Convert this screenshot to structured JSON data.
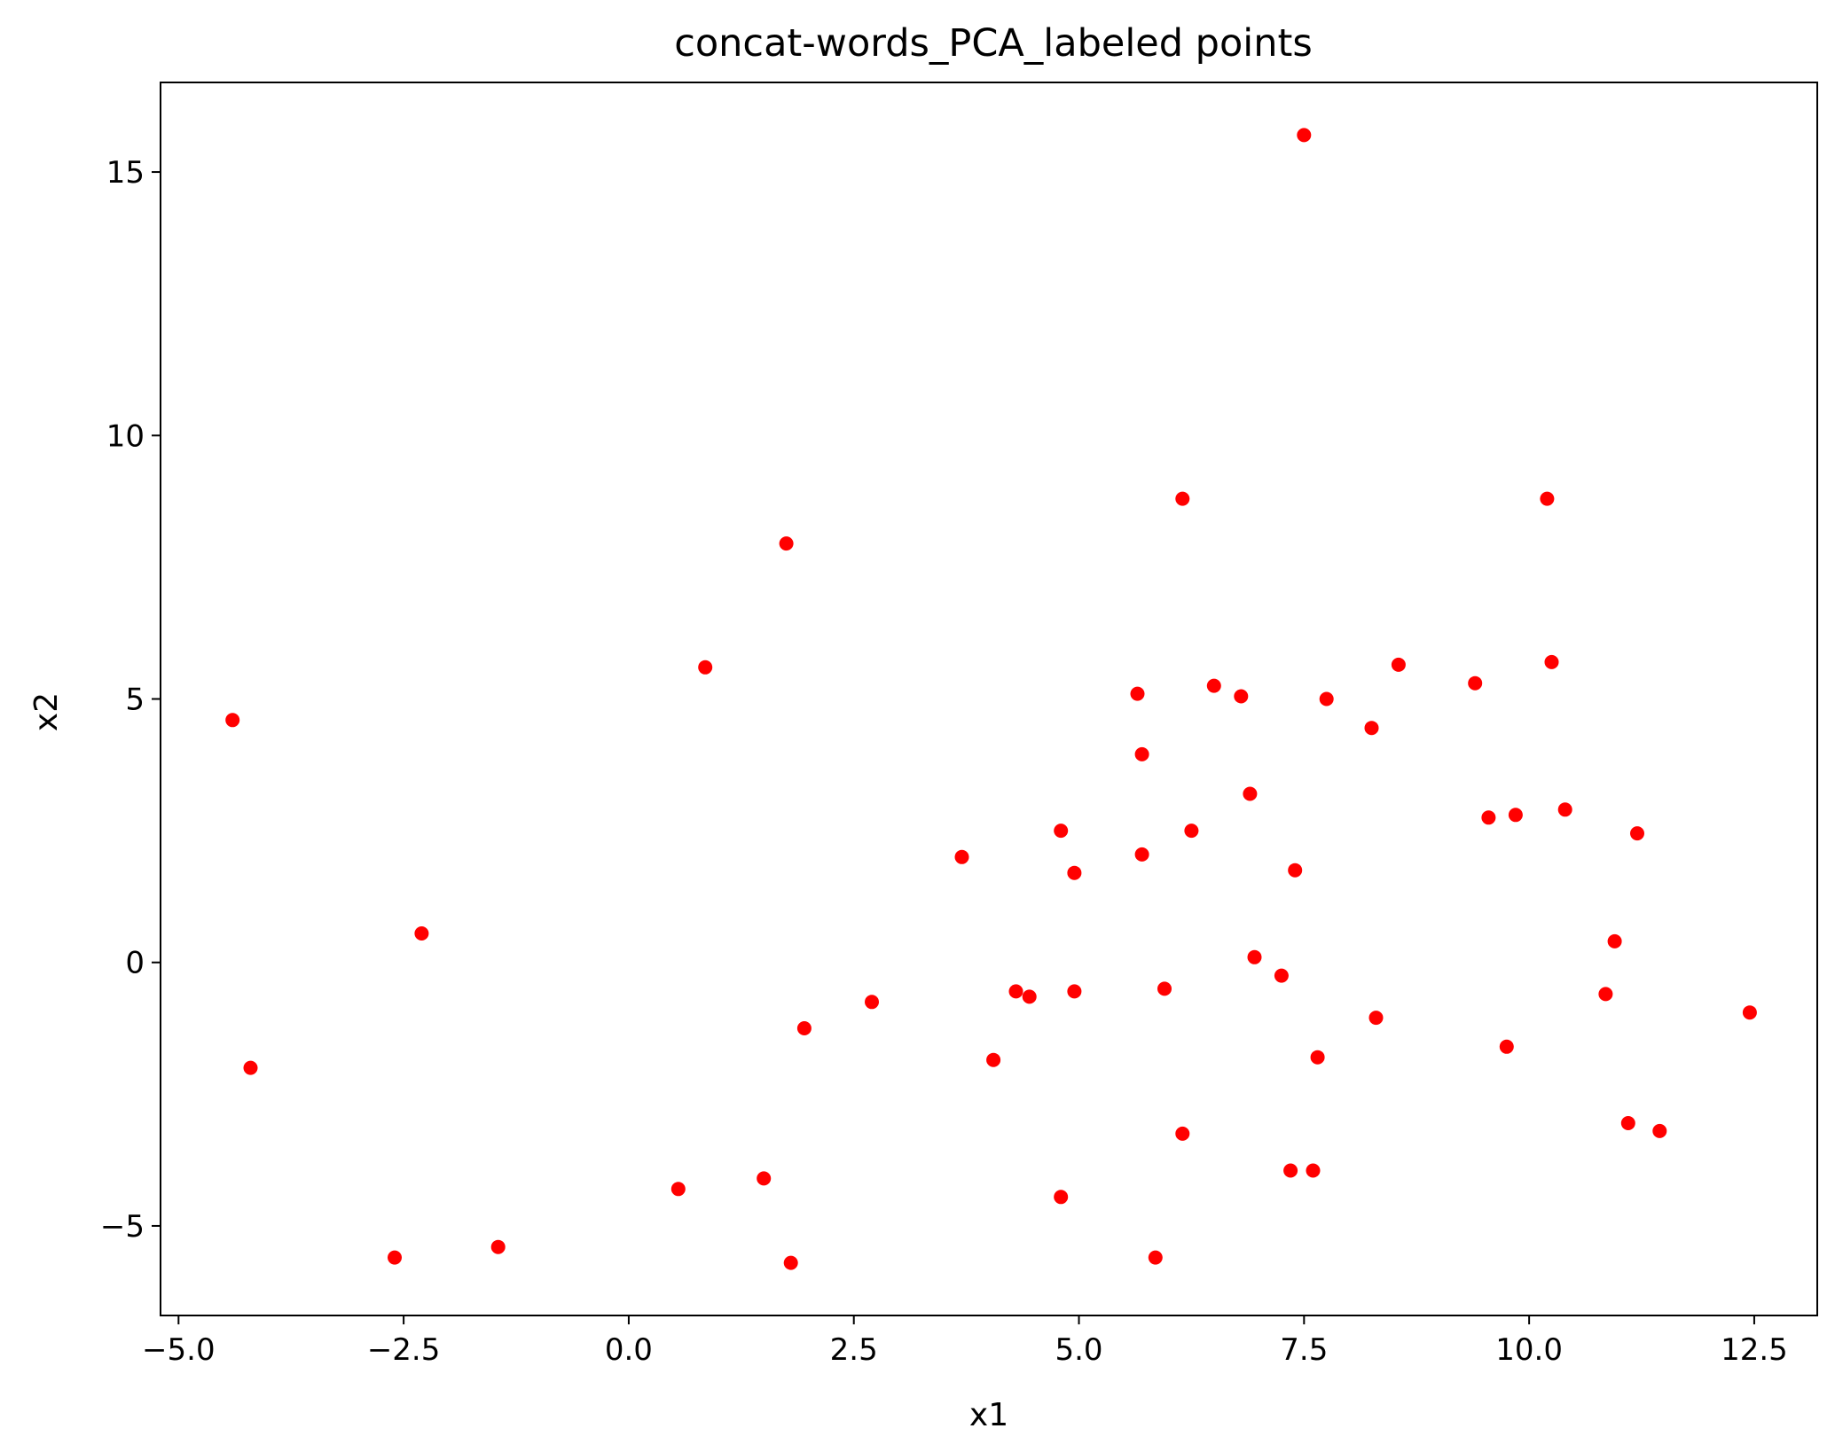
{
  "chart_data": {
    "type": "scatter",
    "title": "concat-words_PCA_labeled points",
    "xlabel": "x1",
    "ylabel": "x2",
    "xlim": [
      -5.2,
      13.2
    ],
    "ylim": [
      -6.7,
      16.7
    ],
    "xticks": [
      -5.0,
      -2.5,
      0.0,
      2.5,
      5.0,
      7.5,
      10.0,
      12.5
    ],
    "xtick_labels": [
      "−5.0",
      "−2.5",
      "0.0",
      "2.5",
      "5.0",
      "7.5",
      "10.0",
      "12.5"
    ],
    "yticks": [
      -5,
      0,
      5,
      10,
      15
    ],
    "ytick_labels": [
      "−5",
      "0",
      "5",
      "10",
      "15"
    ],
    "grid": false,
    "marker_color": "#ff0000",
    "series": [
      {
        "points": [
          {
            "x": 7.5,
            "y": 15.7
          },
          {
            "x": 6.15,
            "y": 8.8
          },
          {
            "x": 10.2,
            "y": 8.8
          },
          {
            "x": 1.75,
            "y": 7.95
          },
          {
            "x": 0.85,
            "y": 5.6
          },
          {
            "x": 8.55,
            "y": 5.65
          },
          {
            "x": 10.25,
            "y": 5.7
          },
          {
            "x": 9.4,
            "y": 5.3
          },
          {
            "x": 6.5,
            "y": 5.25
          },
          {
            "x": 5.65,
            "y": 5.1
          },
          {
            "x": 6.8,
            "y": 5.05
          },
          {
            "x": 7.75,
            "y": 5.0
          },
          {
            "x": -4.4,
            "y": 4.6
          },
          {
            "x": 8.25,
            "y": 4.45
          },
          {
            "x": 5.7,
            "y": 3.95
          },
          {
            "x": 6.9,
            "y": 3.2
          },
          {
            "x": 10.4,
            "y": 2.9
          },
          {
            "x": 9.85,
            "y": 2.8
          },
          {
            "x": 9.55,
            "y": 2.75
          },
          {
            "x": 4.8,
            "y": 2.5
          },
          {
            "x": 6.25,
            "y": 2.5
          },
          {
            "x": 11.2,
            "y": 2.45
          },
          {
            "x": 3.7,
            "y": 2.0
          },
          {
            "x": 5.7,
            "y": 2.05
          },
          {
            "x": 7.4,
            "y": 1.75
          },
          {
            "x": 4.95,
            "y": 1.7
          },
          {
            "x": -2.3,
            "y": 0.55
          },
          {
            "x": 10.95,
            "y": 0.4
          },
          {
            "x": 6.95,
            "y": 0.1
          },
          {
            "x": 7.25,
            "y": -0.25
          },
          {
            "x": 4.3,
            "y": -0.55
          },
          {
            "x": 4.45,
            "y": -0.65
          },
          {
            "x": 4.95,
            "y": -0.55
          },
          {
            "x": 5.95,
            "y": -0.5
          },
          {
            "x": 10.85,
            "y": -0.6
          },
          {
            "x": 2.7,
            "y": -0.75
          },
          {
            "x": 12.45,
            "y": -0.95
          },
          {
            "x": 8.3,
            "y": -1.05
          },
          {
            "x": 1.95,
            "y": -1.25
          },
          {
            "x": 9.75,
            "y": -1.6
          },
          {
            "x": 7.65,
            "y": -1.8
          },
          {
            "x": 4.05,
            "y": -1.85
          },
          {
            "x": -4.2,
            "y": -2.0
          },
          {
            "x": 11.1,
            "y": -3.05
          },
          {
            "x": 11.45,
            "y": -3.2
          },
          {
            "x": 6.15,
            "y": -3.25
          },
          {
            "x": 7.35,
            "y": -3.95
          },
          {
            "x": 7.6,
            "y": -3.95
          },
          {
            "x": 1.5,
            "y": -4.1
          },
          {
            "x": 0.55,
            "y": -4.3
          },
          {
            "x": 4.8,
            "y": -4.45
          },
          {
            "x": -1.45,
            "y": -5.4
          },
          {
            "x": -2.6,
            "y": -5.6
          },
          {
            "x": 5.85,
            "y": -5.6
          },
          {
            "x": 1.8,
            "y": -5.7
          }
        ]
      }
    ]
  }
}
